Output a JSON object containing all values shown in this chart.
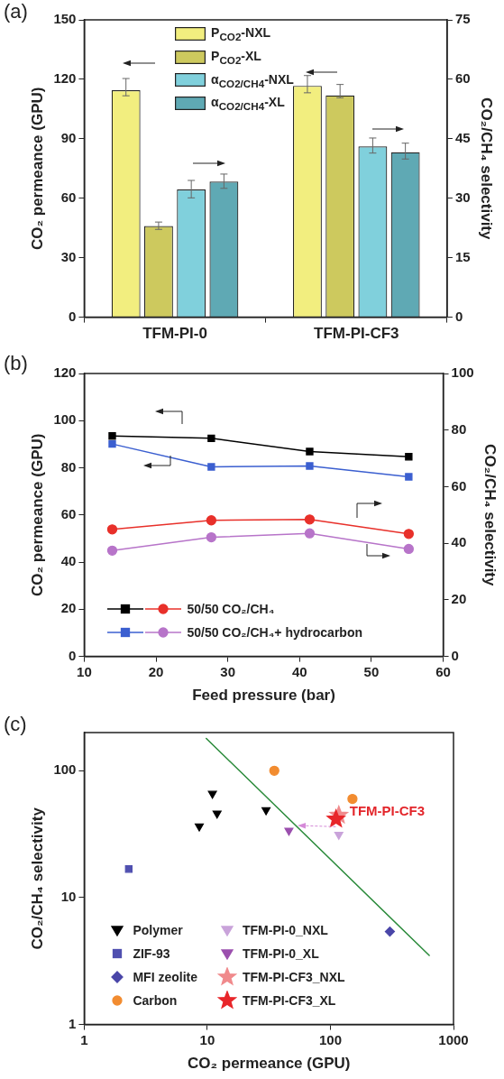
{
  "chart_data": [
    {
      "type": "bar",
      "title": "(a)",
      "ylabel": "CO₂ permeance (GPU)",
      "y2label": "CO₂/CH₄ selectivity",
      "categories": [
        "TFM-PI-0",
        "TFM-PI-CF3"
      ],
      "ylim": [
        0,
        150
      ],
      "yticks": [
        0,
        30,
        60,
        90,
        120,
        150
      ],
      "y2lim": [
        0,
        75
      ],
      "y2ticks": [
        0,
        15,
        30,
        45,
        60,
        75
      ],
      "legend": "top",
      "series": [
        {
          "name": "P$_{CO2}$-NXL",
          "color": "#f2ee7f",
          "values": [
            114.5,
            116.7
          ],
          "errors": [
            [
              111.7,
              120.4
            ],
            [
              113.2,
              121.9
            ]
          ]
        },
        {
          "name": "P$_{CO2}$-XL",
          "color": "#cdc95e",
          "values": [
            46,
            111.9
          ],
          "errors": [
            [
              44.3,
              48
            ],
            [
              110.7,
              117.4
            ]
          ]
        },
        {
          "name": "α$_{CO2/CH4}$-NXL",
          "color": "#80d0dc",
          "axis": "y2",
          "values": [
            32.2,
            43.1
          ],
          "errors": [
            [
              30.1,
              34.5
            ],
            [
              41.4,
              45.2
            ]
          ]
        },
        {
          "name": "α$_{CO2/CH4}$-XL",
          "color": "#5fa9b4",
          "axis": "y2",
          "values": [
            34.2,
            41.6
          ],
          "errors": [
            [
              32.5,
              36.1
            ],
            [
              39.9,
              43.9
            ]
          ]
        }
      ]
    },
    {
      "type": "line",
      "title": "(b)",
      "xlabel": "Feed pressure (bar)",
      "ylabel": "CO₂ permeance (GPU)",
      "y2label": "CO₂/CH₄ selectivity",
      "xlim": [
        10,
        60
      ],
      "xticks": [
        10,
        20,
        30,
        40,
        50,
        60
      ],
      "ylim": [
        0,
        120
      ],
      "yticks": [
        0,
        20,
        40,
        60,
        80,
        100,
        120
      ],
      "y2lim": [
        0,
        100
      ],
      "y2ticks": [
        0,
        20,
        40,
        60,
        80,
        100
      ],
      "legend": "bottom left",
      "x": [
        13.9,
        27.7,
        41.4,
        55.2
      ],
      "series": [
        {
          "color": "#000000",
          "marker": "square",
          "values": [
            93.5,
            92.5,
            86.9,
            84.7
          ]
        },
        {
          "name": "50/50 CO₂/CH₄",
          "color": "#e8302a",
          "marker": "circle",
          "axis": "y2",
          "values": [
            44.9,
            48.1,
            48.4,
            43.3
          ]
        },
        {
          "color": "#3b5fd0",
          "marker": "square",
          "values": [
            90.1,
            80.4,
            80.8,
            76.2
          ]
        },
        {
          "name": "50/50 CO₂/CH₄+ hydrocarbon",
          "color": "#b774c9",
          "marker": "circle",
          "axis": "y2",
          "values": [
            37.4,
            42.1,
            43.5,
            38.0
          ]
        }
      ]
    },
    {
      "type": "scatter",
      "title": "(c)",
      "xlabel": "CO₂ permeance (GPU)",
      "ylabel": "CO₂/CH₄ selectivity",
      "log": "xy",
      "xlim": [
        1,
        1000
      ],
      "xticks": [
        1,
        10,
        100,
        1000
      ],
      "ylim": [
        1,
        200
      ],
      "yticks": [
        1,
        10,
        100
      ],
      "legend": "bottom left",
      "annotations": [
        {
          "text": "TFM-PI-CF3",
          "x": 117,
          "y": 44.6
        }
      ],
      "series": [
        {
          "type": "line",
          "color": "#2a8a3a",
          "marker": "none",
          "x": [
            9.8,
            635
          ],
          "values": [
            180,
            3.5
          ]
        },
        {
          "name": "Polymer",
          "color": "#000000",
          "marker": "triangle",
          "x": [
            8.6,
            11,
            12,
            30
          ],
          "values": [
            36.5,
            66,
            46,
            49
          ]
        },
        {
          "name": "ZIF-93",
          "color": "#5050b0",
          "marker": "square",
          "x": [
            2.3
          ],
          "values": [
            16.8
          ]
        },
        {
          "name": "MFI zeolite",
          "color": "#4a46a8",
          "marker": "diamond",
          "x": [
            304
          ],
          "values": [
            5.4
          ]
        },
        {
          "name": "Carbon",
          "color": "#f28c30",
          "marker": "circle",
          "x": [
            35,
            151
          ],
          "values": [
            100,
            60
          ]
        },
        {
          "name": "TFM-PI-0_NXL",
          "color": "#c9a3da",
          "marker": "triangle",
          "x": [
            117
          ],
          "values": [
            31.4
          ]
        },
        {
          "name": "TFM-PI-0_XL",
          "color": "#9b4fae",
          "marker": "triangle",
          "x": [
            46
          ],
          "values": [
            33.7
          ]
        },
        {
          "name": "TFM-PI-CF3_NXL",
          "color": "#f08a8c",
          "marker": "star",
          "x": [
            117
          ],
          "values": [
            44.6
          ]
        },
        {
          "name": "TFM-PI-CF3_XL",
          "color": "#e8262a",
          "marker": "star",
          "x": [
            111
          ],
          "values": [
            41.6
          ]
        }
      ]
    }
  ]
}
